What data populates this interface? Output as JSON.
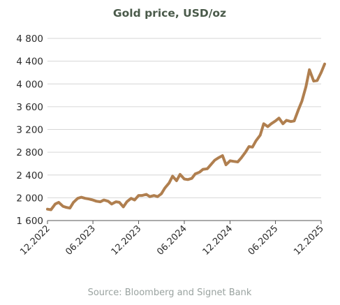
{
  "chart_data": {
    "type": "line",
    "title": "Gold price, USD/oz",
    "source": "Source: Bloomberg and Signet Bank",
    "ylim": [
      1600,
      4800
    ],
    "yticks": [
      1600,
      2000,
      2400,
      2800,
      3200,
      3600,
      4000,
      4400,
      4800
    ],
    "ytick_labels": [
      "1 600",
      "2 000",
      "2 400",
      "2 800",
      "3 200",
      "3 600",
      "4 000",
      "4 400",
      "4 800"
    ],
    "xticks": [
      "2022-12",
      "2023-06",
      "2023-12",
      "2024-06",
      "2024-12",
      "2025-06",
      "2025-12"
    ],
    "xtick_labels": [
      "12.2022",
      "06.2023",
      "12.2023",
      "06.2024",
      "12.2024",
      "06.2025",
      "12.2025"
    ],
    "grid": true,
    "colors": {
      "line": "#b07f4f",
      "title": "#4a5a4a",
      "source": "#9aa3a0"
    },
    "series": [
      {
        "x": [
          "2022-12-01",
          "2022-12-15",
          "2023-01-01",
          "2023-01-15",
          "2023-02-01",
          "2023-02-15",
          "2023-03-01",
          "2023-03-15",
          "2023-04-01",
          "2023-04-15",
          "2023-05-01",
          "2023-05-15",
          "2023-06-01",
          "2023-06-15",
          "2023-07-01",
          "2023-07-15",
          "2023-08-01",
          "2023-08-15",
          "2023-09-01",
          "2023-09-15",
          "2023-10-01",
          "2023-10-15",
          "2023-11-01",
          "2023-11-15",
          "2023-12-01",
          "2023-12-15",
          "2024-01-01",
          "2024-01-15",
          "2024-02-01",
          "2024-02-15",
          "2024-03-01",
          "2024-03-15",
          "2024-04-01",
          "2024-04-15",
          "2024-05-01",
          "2024-05-15",
          "2024-06-01",
          "2024-06-15",
          "2024-07-01",
          "2024-07-15",
          "2024-08-01",
          "2024-08-15",
          "2024-09-01",
          "2024-09-15",
          "2024-10-01",
          "2024-10-15",
          "2024-11-01",
          "2024-11-15",
          "2024-12-01",
          "2024-12-15",
          "2025-01-01",
          "2025-01-15",
          "2025-02-01",
          "2025-02-15",
          "2025-03-01",
          "2025-03-15",
          "2025-04-01",
          "2025-04-15",
          "2025-05-01",
          "2025-05-15",
          "2025-06-01",
          "2025-06-15",
          "2025-07-01",
          "2025-07-15",
          "2025-08-01",
          "2025-08-15",
          "2025-09-01",
          "2025-09-15",
          "2025-10-01",
          "2025-10-15",
          "2025-11-01",
          "2025-11-15",
          "2025-12-01",
          "2025-12-15"
        ],
        "values": [
          1800,
          1790,
          1890,
          1920,
          1850,
          1830,
          1820,
          1920,
          1990,
          2010,
          1990,
          1980,
          1960,
          1940,
          1930,
          1960,
          1940,
          1890,
          1930,
          1920,
          1840,
          1930,
          1990,
          1960,
          2040,
          2040,
          2060,
          2020,
          2040,
          2020,
          2070,
          2170,
          2260,
          2380,
          2300,
          2410,
          2330,
          2320,
          2340,
          2420,
          2450,
          2500,
          2510,
          2580,
          2660,
          2700,
          2740,
          2580,
          2650,
          2640,
          2630,
          2700,
          2800,
          2900,
          2890,
          3000,
          3100,
          3300,
          3250,
          3300,
          3350,
          3400,
          3300,
          3360,
          3340,
          3350,
          3550,
          3700,
          3950,
          4250,
          4050,
          4060,
          4200,
          4350
        ]
      }
    ]
  }
}
